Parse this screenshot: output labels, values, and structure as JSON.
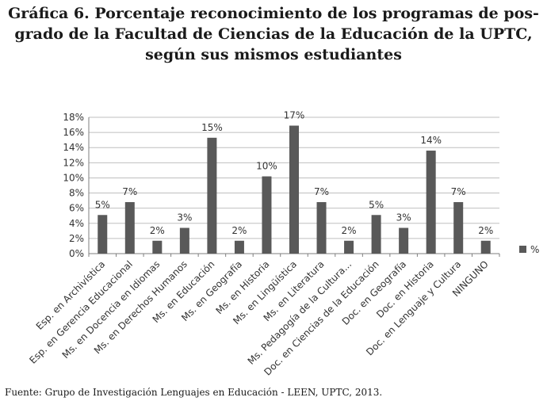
{
  "title_lines": [
    "Gráfica 6. Porcentaje reconocimiento de los programas de pos-",
    "grado de la Facultad de Ciencias de la Educación de la UPTC,",
    "según sus mismos estudiantes"
  ],
  "source": "Fuente: Grupo de Investigación Lenguajes en Educación - LEEN, UPTC, 2013.",
  "colors": {
    "bar": "#595959",
    "grid": "#bfbfbf",
    "axis": "#7f7f7f"
  },
  "chart_data": {
    "type": "bar",
    "title": "Gráfica 6. Porcentaje reconocimiento de los programas de posgrado de la Facultad de Ciencias de la Educación de la UPTC, según sus mismos estudiantes",
    "categories": [
      "Esp. en Archivística",
      "Esp. en Gerencia Educacional",
      "Ms. en Docencia en Idiomas",
      "Ms. en Derechos Humanos",
      "Ms. en Educación",
      "Ms. en Geografía",
      "Ms. en Historia",
      "Ms. en Lingüística",
      "Ms. en Literatura",
      "Ms. Pedagogía de la Cultura...",
      "Doc. en Ciencias de la Educación",
      "Doc. en Geografía",
      "Doc. en Historia",
      "Doc. en Lenguaje y Cultura",
      "NINGUNO"
    ],
    "series": [
      {
        "name": "%",
        "values": [
          5.1,
          6.8,
          1.7,
          3.4,
          15.3,
          1.7,
          10.2,
          16.9,
          6.8,
          1.7,
          5.1,
          3.4,
          13.6,
          6.8,
          1.7
        ]
      }
    ],
    "data_labels": [
      "5%",
      "7%",
      "2%",
      "3%",
      "15%",
      "2%",
      "10%",
      "17%",
      "7%",
      "2%",
      "5%",
      "3%",
      "14%",
      "7%",
      "2%"
    ],
    "y_ticks": [
      0,
      2,
      4,
      6,
      8,
      10,
      12,
      14,
      16,
      18
    ],
    "y_tick_labels": [
      "0%",
      "2%",
      "4%",
      "6%",
      "8%",
      "10%",
      "12%",
      "14%",
      "16%",
      "18%"
    ],
    "ylim": [
      0,
      18
    ],
    "xlabel": "",
    "ylabel": "",
    "legend": {
      "entries": [
        "%"
      ],
      "position": "right"
    },
    "grid": true
  }
}
